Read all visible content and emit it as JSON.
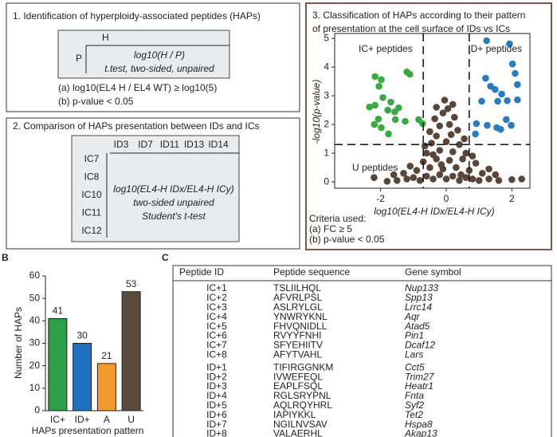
{
  "panel_labels": [
    "B",
    "C"
  ],
  "box1": {
    "title": "1. Identification of hyperploidy-associated peptides (HAPs)",
    "h": "H",
    "p": "P",
    "formula": "log10(H / P)",
    "test": "t.test, two-sided, unpaired",
    "criteria": [
      "(a) log10(EL4 H / EL4 WT) ≥ log10(5)",
      "(b) p-value < 0.05"
    ]
  },
  "box2": {
    "title": "2. Comparison of HAPs presentation between IDs and ICs",
    "columns": [
      "ID3",
      "ID7",
      "ID11",
      "ID13",
      "ID14"
    ],
    "rows": [
      "IC7",
      "IC8",
      "IC10",
      "IC11",
      "IC12"
    ],
    "formula": "log10(EL4-H IDx/EL4-H ICy)",
    "test_lines": [
      "two-sided unpaired",
      "Student's t-test"
    ]
  },
  "criteria": [
    "Criteria used:",
    "(a) FC ≥ 5",
    "(b) p-value < 0.05"
  ],
  "chart_data": [
    {
      "type": "scatter",
      "title": [
        "3. Classification of HAPs according to their pattern",
        "of presentation at the cell surface of IDs vs ICs"
      ],
      "x_label": "log10(EL4-H IDx/EL4-H ICy)",
      "y_label": "-log10(p-value)",
      "xlim": [
        -3.4,
        2.55
      ],
      "ylim": [
        -0.22,
        5.17
      ],
      "xticks": [
        -2,
        0,
        2
      ],
      "yticks": [
        0,
        1,
        2,
        3,
        4,
        5
      ],
      "vlines": [
        -0.7,
        0.7
      ],
      "hlines": [
        1.3
      ],
      "series": [
        {
          "name": "IC+ peptides",
          "color": "#3aa843",
          "x": [
            -1.11,
            -1.2,
            -2.17,
            -1.98,
            -2.05,
            -1.93,
            -1.69,
            -2.34,
            -2.17,
            -1.78,
            -1.57,
            -1.45,
            -2.07,
            -2.19,
            -1.98,
            -1.55,
            -1.25,
            -0.84,
            -0.72,
            -1.76
          ],
          "values": [
            3.75,
            3.83,
            3.67,
            3.56,
            3.33,
            2.94,
            2.78,
            2.61,
            2.67,
            2.5,
            2.44,
            2.58,
            2.19,
            2.0,
            1.89,
            2.17,
            2.11,
            2.17,
            2.03,
            1.67
          ]
        },
        {
          "name": "ID+ peptides",
          "color": "#2b7bbf",
          "x": [
            1.23,
            1.93,
            2.02,
            2.1,
            2.17,
            1.2,
            1.35,
            1.49,
            1.69,
            1.86,
            1.57,
            2.17,
            1.08,
            1.83,
            0.92,
            1.25,
            1.54,
            1.98,
            0.89,
            1.66
          ],
          "values": [
            4.92,
            4.81,
            4.11,
            3.78,
            3.39,
            3.61,
            3.33,
            3.22,
            3.06,
            2.83,
            2.81,
            2.86,
            2.81,
            2.17,
            2.03,
            1.97,
            1.89,
            1.97,
            1.67,
            1.83
          ]
        },
        {
          "name": "U peptides",
          "color": "#5a4638",
          "x": [
            -1.5,
            -1.2,
            -1,
            -0.8,
            -0.6,
            -0.4,
            -0.2,
            0,
            0.2,
            0.4,
            0.6,
            0.8,
            1,
            1.3,
            1.6,
            -1.8,
            2,
            -0.9,
            -0.5,
            -0.1,
            0.3,
            0.7,
            1.1,
            -1.3,
            -0.7,
            -0.3,
            0.1,
            0.5,
            0.9,
            -0.6,
            -0.2,
            0.2,
            0.6,
            -0.45,
            0,
            0.4,
            -0.3,
            0.15,
            -0.5,
            0.35,
            -0.2,
            0.1,
            -0.35,
            0.25,
            -0.1,
            0.05,
            -0.3,
            0.2,
            -0.05,
            -0.4,
            0.8,
            -1.1,
            1.3,
            -2.2,
            2.3,
            -0.65,
            0.55,
            1.5,
            -1.6,
            -0.15,
            0.45
          ],
          "values": [
            0.05,
            0.1,
            0.15,
            0.05,
            0.2,
            0.1,
            0.25,
            0.1,
            0.2,
            0.05,
            0.15,
            0.1,
            0.05,
            0.1,
            0.05,
            0.02,
            0.08,
            0.4,
            0.5,
            0.45,
            0.5,
            0.4,
            0.3,
            0.3,
            0.7,
            0.8,
            0.75,
            0.8,
            0.65,
            1.0,
            1.1,
            1.05,
            1.0,
            1.35,
            1.4,
            1.3,
            1.6,
            1.65,
            1.75,
            1.8,
            1.95,
            2.0,
            2.2,
            2.25,
            2.4,
            2.55,
            2.6,
            2.7,
            2.85,
            0.95,
            0.9,
            0.55,
            0.45,
            0.15,
            0.1,
            1.25,
            1.5,
            0.25,
            0.25,
            0.6,
            0.25
          ]
        }
      ]
    },
    {
      "type": "bar",
      "categories": [
        "IC+",
        "ID+",
        "A",
        "U"
      ],
      "values": [
        41,
        30,
        21,
        53
      ],
      "colors": [
        "#2e9e48",
        "#1f6fc1",
        "#f79a2e",
        "#5b4a3e"
      ],
      "y_label": "Number of HAPs",
      "x_label": "HAPs presentation pattern",
      "ylim": [
        0,
        60
      ],
      "yticks": [
        0,
        10,
        20,
        30,
        40,
        50,
        60
      ]
    }
  ],
  "table": {
    "columns": [
      "Peptide ID",
      "Peptide sequence",
      "Gene symbol"
    ],
    "groups": [
      [
        [
          "IC+1",
          "TSLIILHQL",
          "Nup133"
        ],
        [
          "IC+2",
          "AFVRLPSL",
          "Spp13"
        ],
        [
          "IC+3",
          "ASLRYLGL",
          "Lrrc14"
        ],
        [
          "IC+4",
          "YNWRYKNL",
          "Aqr"
        ],
        [
          "IC+5",
          "FHVQNIDLL",
          "Atad5"
        ],
        [
          "IC+6",
          "RVYYFNHI",
          "Pin1"
        ],
        [
          "IC+7",
          "SFYEHIITV",
          "Dcaf12"
        ],
        [
          "IC+8",
          "AFYTVAHL",
          "Lars"
        ]
      ],
      [
        [
          "ID+1",
          "TIFIRGGNKM",
          "Cct5"
        ],
        [
          "ID+2",
          "IVWEFEQL",
          "Trim27"
        ],
        [
          "ID+3",
          "EAPLFSQL",
          "Heatr1"
        ],
        [
          "ID+4",
          "RGLSRYPNL",
          "Fnta"
        ],
        [
          "ID+5",
          "AQLRQYHRL",
          "Syf2"
        ],
        [
          "ID+6",
          "IAPIYKKL",
          "Tet2"
        ],
        [
          "ID+7",
          "NGILNVSAV",
          "Hspa8"
        ],
        [
          "ID+8",
          "VALAERHL",
          "Akap13"
        ]
      ]
    ]
  }
}
